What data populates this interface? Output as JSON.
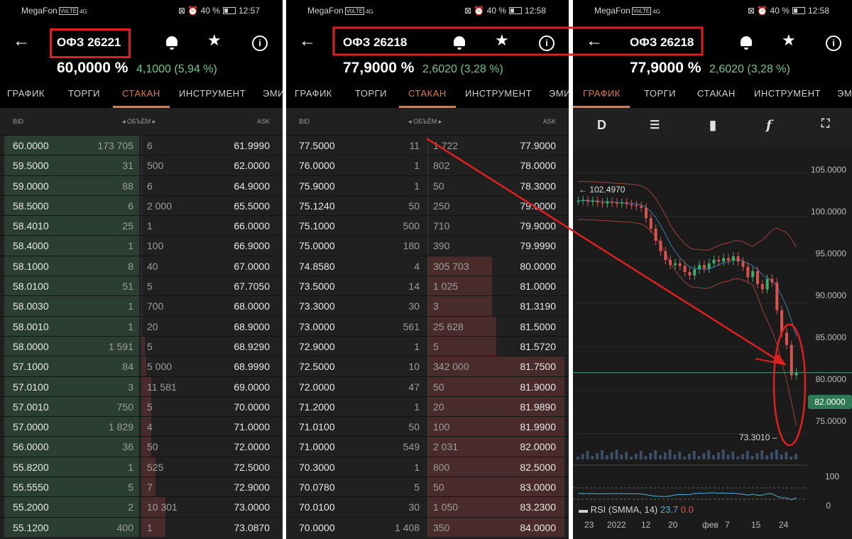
{
  "colors": {
    "bid_bar": "#2b3e32",
    "ask_bar": "#4a2b2b",
    "accent": "#e07a3f",
    "positive": "#71c78a",
    "highlight": "#e02020"
  },
  "screens": [
    {
      "status": {
        "carrier": "MegaFon",
        "volte": "VoLTE",
        "signal": "4G",
        "battery": "40 %",
        "time": "12:57"
      },
      "title": "ОФЗ 26221",
      "price": "60,0000 %",
      "change": "4,1000 (5,94 %)",
      "tabs": [
        "ГРАФИК",
        "ТОРГИ",
        "СТАКАН",
        "ИНСТРУМЕНТ",
        "ЭМИ"
      ],
      "active_tab": "СТАКАН",
      "headers": {
        "bid": "BID",
        "volume": "◂ ОБЪЁМ ▸",
        "ask": "ASK"
      },
      "rows": [
        {
          "bid": "60.0000",
          "bid_vol": "173 705",
          "bid_fill": 1.0,
          "ask_vol": "6",
          "ask_fill": 0,
          "ask": "61.9990"
        },
        {
          "bid": "59.5000",
          "bid_vol": "31",
          "bid_fill": 1.0,
          "ask_vol": "500",
          "ask_fill": 0,
          "ask": "62.0000"
        },
        {
          "bid": "59.0000",
          "bid_vol": "88",
          "bid_fill": 1.0,
          "ask_vol": "6",
          "ask_fill": 0,
          "ask": "64.9000"
        },
        {
          "bid": "58.5000",
          "bid_vol": "6",
          "bid_fill": 1.0,
          "ask_vol": "2 000",
          "ask_fill": 0,
          "ask": "65.5000"
        },
        {
          "bid": "58.4010",
          "bid_vol": "25",
          "bid_fill": 1.0,
          "ask_vol": "1",
          "ask_fill": 0,
          "ask": "66.0000"
        },
        {
          "bid": "58.4000",
          "bid_vol": "1",
          "bid_fill": 1.0,
          "ask_vol": "100",
          "ask_fill": 0,
          "ask": "66.9000"
        },
        {
          "bid": "58.1000",
          "bid_vol": "8",
          "bid_fill": 1.0,
          "ask_vol": "40",
          "ask_fill": 0,
          "ask": "67.0000"
        },
        {
          "bid": "58.0100",
          "bid_vol": "51",
          "bid_fill": 1.0,
          "ask_vol": "5",
          "ask_fill": 0,
          "ask": "67.7050"
        },
        {
          "bid": "58.0030",
          "bid_vol": "1",
          "bid_fill": 1.0,
          "ask_vol": "700",
          "ask_fill": 0,
          "ask": "68.0000"
        },
        {
          "bid": "58.0010",
          "bid_vol": "1",
          "bid_fill": 1.0,
          "ask_vol": "20",
          "ask_fill": 0,
          "ask": "68.9000"
        },
        {
          "bid": "58.0000",
          "bid_vol": "1 591",
          "bid_fill": 1.0,
          "ask_vol": "5",
          "ask_fill": 0.02,
          "ask": "68.9290"
        },
        {
          "bid": "57.1000",
          "bid_vol": "84",
          "bid_fill": 1.0,
          "ask_vol": "5 000",
          "ask_fill": 0.03,
          "ask": "68.9990"
        },
        {
          "bid": "57.0100",
          "bid_vol": "3",
          "bid_fill": 1.0,
          "ask_vol": "11 581",
          "ask_fill": 0.07,
          "ask": "69.0000"
        },
        {
          "bid": "57.0010",
          "bid_vol": "750",
          "bid_fill": 1.0,
          "ask_vol": "5",
          "ask_fill": 0.07,
          "ask": "70.0000"
        },
        {
          "bid": "57.0000",
          "bid_vol": "1 829",
          "bid_fill": 1.0,
          "ask_vol": "4",
          "ask_fill": 0.07,
          "ask": "71.0000"
        },
        {
          "bid": "56.0000",
          "bid_vol": "36",
          "bid_fill": 1.0,
          "ask_vol": "50",
          "ask_fill": 0.07,
          "ask": "72.0000"
        },
        {
          "bid": "55.8200",
          "bid_vol": "1",
          "bid_fill": 1.0,
          "ask_vol": "525",
          "ask_fill": 0.1,
          "ask": "72.5000"
        },
        {
          "bid": "55.5550",
          "bid_vol": "5",
          "bid_fill": 1.0,
          "ask_vol": "7",
          "ask_fill": 0.1,
          "ask": "72.9000"
        },
        {
          "bid": "55.2000",
          "bid_vol": "2",
          "bid_fill": 1.0,
          "ask_vol": "10 301",
          "ask_fill": 0.17,
          "ask": "73.0000"
        },
        {
          "bid": "55.1200",
          "bid_vol": "400",
          "bid_fill": 1.0,
          "ask_vol": "1",
          "ask_fill": 0.17,
          "ask": "73.0870"
        }
      ]
    },
    {
      "status": {
        "carrier": "MegaFon",
        "volte": "VoLTE",
        "signal": "4G",
        "battery": "40 %",
        "time": "12:58"
      },
      "title": "ОФЗ 26218",
      "price": "77,9000 %",
      "change": "2,6020 (3,28 %)",
      "tabs": [
        "ГРАФИК",
        "ТОРГИ",
        "СТАКАН",
        "ИНСТРУМЕНТ",
        "ЭМИ"
      ],
      "active_tab": "СТАКАН",
      "headers": {
        "bid": "BID",
        "volume": "◂ ОБЪЁМ ▸",
        "ask": "ASK"
      },
      "rows": [
        {
          "bid": "77.5000",
          "bid_vol": "11",
          "bid_fill": 0,
          "ask_vol": "1 722",
          "ask_fill": 0,
          "ask": "77.9000"
        },
        {
          "bid": "76.0000",
          "bid_vol": "1",
          "bid_fill": 0,
          "ask_vol": "802",
          "ask_fill": 0,
          "ask": "78.0000"
        },
        {
          "bid": "75.9000",
          "bid_vol": "1",
          "bid_fill": 0,
          "ask_vol": "50",
          "ask_fill": 0,
          "ask": "78.3000"
        },
        {
          "bid": "75.1240",
          "bid_vol": "50",
          "bid_fill": 0,
          "ask_vol": "250",
          "ask_fill": 0,
          "ask": "79.0000"
        },
        {
          "bid": "75.1000",
          "bid_vol": "500",
          "bid_fill": 0,
          "ask_vol": "710",
          "ask_fill": 0,
          "ask": "79.9000"
        },
        {
          "bid": "75.0000",
          "bid_vol": "180",
          "bid_fill": 0,
          "ask_vol": "390",
          "ask_fill": 0,
          "ask": "79.9990"
        },
        {
          "bid": "74.8580",
          "bid_vol": "4",
          "bid_fill": 0,
          "ask_vol": "305 703",
          "ask_fill": 0.47,
          "ask": "80.0000"
        },
        {
          "bid": "73.5000",
          "bid_vol": "14",
          "bid_fill": 0,
          "ask_vol": "1 025",
          "ask_fill": 0.47,
          "ask": "81.0000"
        },
        {
          "bid": "73.3000",
          "bid_vol": "30",
          "bid_fill": 0,
          "ask_vol": "3",
          "ask_fill": 0.47,
          "ask": "81.3190"
        },
        {
          "bid": "73.0000",
          "bid_vol": "561",
          "bid_fill": 0,
          "ask_vol": "25 628",
          "ask_fill": 0.5,
          "ask": "81.5000"
        },
        {
          "bid": "72.9000",
          "bid_vol": "1",
          "bid_fill": 0,
          "ask_vol": "5",
          "ask_fill": 0.5,
          "ask": "81.5720"
        },
        {
          "bid": "72.5000",
          "bid_vol": "10",
          "bid_fill": 0,
          "ask_vol": "342 000",
          "ask_fill": 1.0,
          "ask": "81.7500"
        },
        {
          "bid": "72.0000",
          "bid_vol": "47",
          "bid_fill": 0,
          "ask_vol": "50",
          "ask_fill": 1.0,
          "ask": "81.9000"
        },
        {
          "bid": "71.2000",
          "bid_vol": "1",
          "bid_fill": 0,
          "ask_vol": "20",
          "ask_fill": 1.0,
          "ask": "81.9890"
        },
        {
          "bid": "71.0100",
          "bid_vol": "50",
          "bid_fill": 0,
          "ask_vol": "100",
          "ask_fill": 1.0,
          "ask": "81.9900"
        },
        {
          "bid": "71.0000",
          "bid_vol": "549",
          "bid_fill": 0,
          "ask_vol": "2 031",
          "ask_fill": 1.0,
          "ask": "82.0000"
        },
        {
          "bid": "70.3000",
          "bid_vol": "1",
          "bid_fill": 0,
          "ask_vol": "800",
          "ask_fill": 1.0,
          "ask": "82.5000"
        },
        {
          "bid": "70.0780",
          "bid_vol": "5",
          "bid_fill": 0,
          "ask_vol": "50",
          "ask_fill": 1.0,
          "ask": "83.0000"
        },
        {
          "bid": "70.0100",
          "bid_vol": "30",
          "bid_fill": 0,
          "ask_vol": "1 050",
          "ask_fill": 1.0,
          "ask": "83.2300"
        },
        {
          "bid": "70.0000",
          "bid_vol": "1 408",
          "bid_fill": 0,
          "ask_vol": "350",
          "ask_fill": 1.0,
          "ask": "84.0000"
        }
      ]
    },
    {
      "status": {
        "carrier": "MegaFon",
        "volte": "VoLTE",
        "signal": "4G",
        "battery": "40 %",
        "time": "12:58"
      },
      "title": "ОФЗ 26218",
      "price": "77,9000 %",
      "change": "2,6020 (3,28 %)",
      "tabs": [
        "ГРАФИК",
        "ТОРГИ",
        "СТАКАН",
        "ИНСТРУМЕНТ",
        "ЭМИ"
      ],
      "active_tab": "ГРАФИК",
      "toolbar": {
        "interval": "D"
      },
      "chart": {
        "y_ticks": [
          "105.0000",
          "100.0000",
          "95.0000",
          "90.0000",
          "85.0000",
          "80.0000",
          "75.0000"
        ],
        "x_ticks": [
          "23",
          "2022",
          "12",
          "20",
          "фев",
          "7",
          "15",
          "24"
        ],
        "last_price": "82.0000",
        "high_label": "← 102.4970",
        "low_label": "73.3010 –",
        "rsi_label": "RSI (SMMA, 14)",
        "rsi_value": "23.7",
        "rsi_value2": "0.0",
        "rsi_ticks": [
          "100",
          "0"
        ]
      }
    }
  ],
  "chart_data": {
    "type": "candlestick",
    "ylim": [
      72,
      108
    ],
    "y_ticks": [
      75,
      80,
      85,
      90,
      95,
      100,
      105
    ],
    "x_labels": [
      "23",
      "2022",
      "12",
      "20",
      "фев",
      "7",
      "15",
      "24"
    ],
    "close": [
      101.8,
      101.9,
      101.7,
      101.8,
      101.6,
      101.5,
      101.7,
      101.6,
      101.5,
      101.6,
      101.4,
      101.3,
      101.2,
      101.0,
      99.8,
      98.6,
      97.2,
      96.0,
      95.0,
      94.4,
      94.6,
      94.3,
      93.6,
      93.2,
      93.9,
      94.4,
      94.0,
      94.6,
      95.0,
      94.8,
      95.2,
      94.9,
      95.4,
      94.8,
      94.2,
      93.0,
      93.7,
      92.2,
      91.6,
      92.8,
      92.4,
      89.2,
      86.6,
      85.2,
      81.7,
      82.0
    ]
  }
}
